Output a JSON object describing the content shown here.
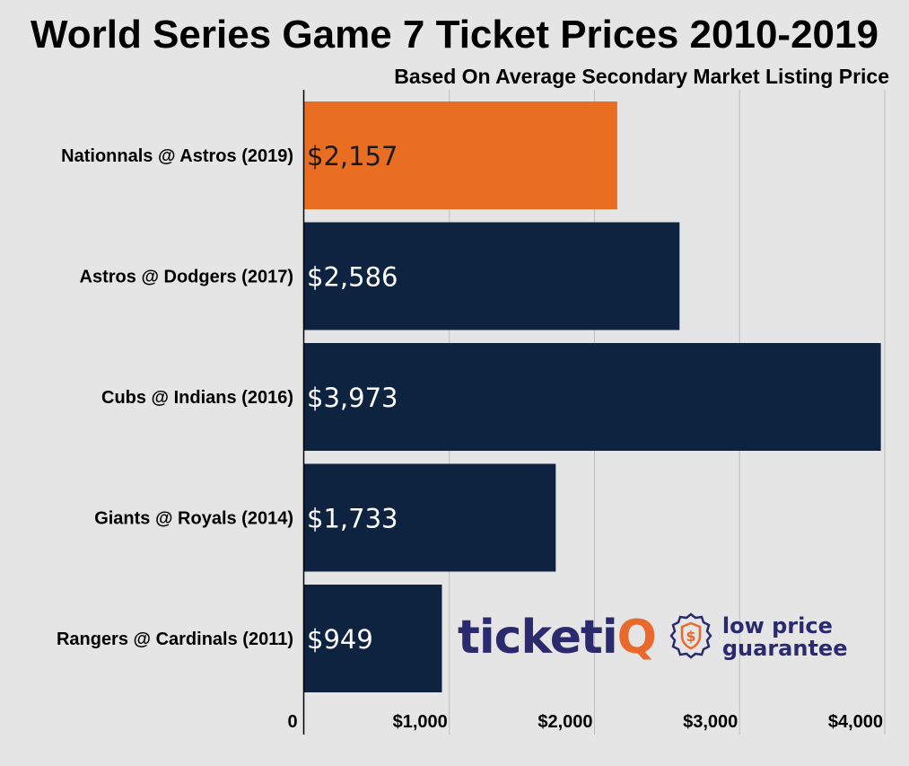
{
  "header": {
    "title": "World Series Game 7 Ticket Prices 2010-2019",
    "subtitle": "Based On Average Secondary Market Listing Price"
  },
  "logo": {
    "brand_main": "ticketi",
    "brand_accent": "Q",
    "tagline_line1": "low price",
    "tagline_line2": "guarantee",
    "badge_symbol": "$"
  },
  "colors": {
    "background": "#e5e5e5",
    "highlight_bar": "#ea6e22",
    "bar": "#0e2340",
    "gridline": "#bdbdbd",
    "brand_navy": "#2b2a6e",
    "brand_orange": "#e8692b"
  },
  "chart_data": {
    "type": "bar",
    "orientation": "horizontal",
    "title": "World Series Game 7 Ticket Prices 2010-2019",
    "subtitle": "Based On Average Secondary Market Listing Price",
    "categories": [
      "Nationnals @ Astros (2019)",
      "Astros @ Dodgers (2017)",
      "Cubs @ Indians (2016)",
      "Giants @ Royals (2014)",
      "Rangers @ Cardinals (2011)"
    ],
    "values": [
      2157,
      2586,
      3973,
      1733,
      949
    ],
    "data_labels": [
      "$2,157",
      "$2,586",
      "$3,973",
      "$1,733",
      "$949"
    ],
    "highlighted_index": 0,
    "xlim": [
      0,
      4000
    ],
    "x_ticks": [
      0,
      1000,
      2000,
      3000,
      4000
    ],
    "x_tick_labels": [
      "0",
      "$1,000",
      "$2,000",
      "$3,000",
      "$4,000"
    ],
    "grid": true,
    "legend": "none"
  }
}
